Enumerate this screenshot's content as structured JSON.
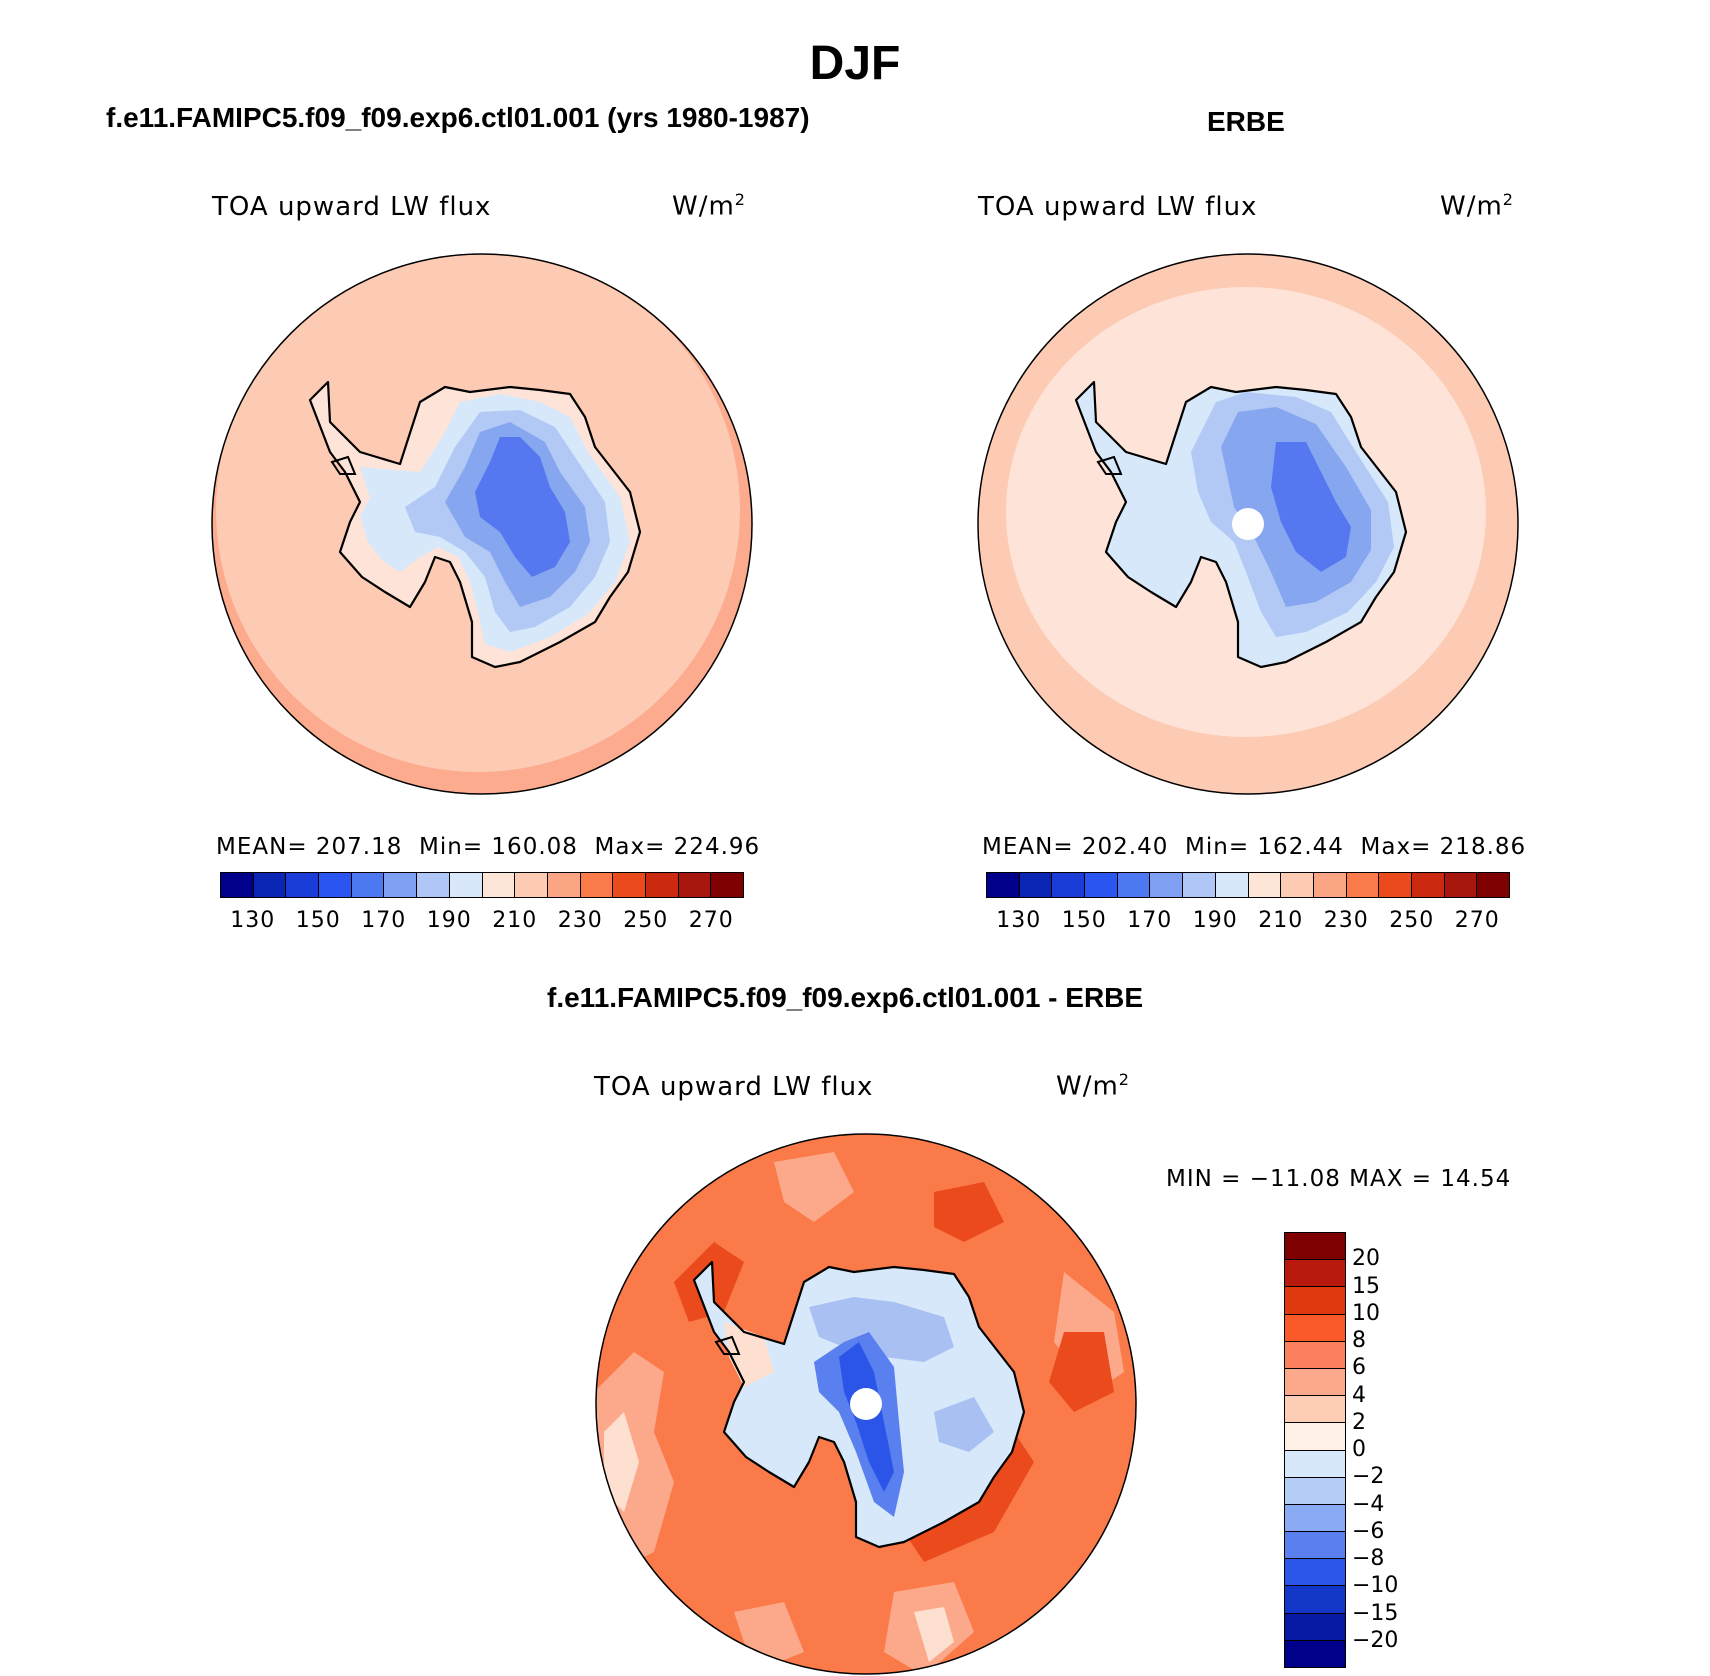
{
  "page": {
    "season": "DJF"
  },
  "panels": {
    "model": {
      "title": "f.e11.FAMIPC5.f09_f09.exp6.ctl01.001 (yrs 1980-1987)",
      "variable": "TOA upward LW flux",
      "units_base": "W/m",
      "units_exp": "2",
      "mean_label": "MEAN=",
      "mean": "207.18",
      "min_label": "Min=",
      "min": "160.08",
      "max_label": "Max=",
      "max": "224.96",
      "colors": {
        "ocean": "#fdcab3",
        "outer_ring": "#fcab8f",
        "coast_fill": "#fee4d8",
        "light_blue": "#d6e8fa",
        "mid_blue": "#b3c9f5",
        "blue": "#87a6f0",
        "deep_blue": "#5578f0"
      }
    },
    "obs": {
      "title": "ERBE",
      "variable": "TOA upward LW flux",
      "units_base": "W/m",
      "units_exp": "2",
      "mean_label": "MEAN=",
      "mean": "202.40",
      "min_label": "Min=",
      "min": "162.44",
      "max_label": "Max=",
      "max": "218.86",
      "colors": {
        "ocean": "#fee4d8",
        "outer_ring": "#fdcab3",
        "light_blue": "#d6e8fa",
        "mid_blue": "#b3c9f5",
        "blue": "#87a6f0",
        "deep_blue": "#5578f0"
      }
    },
    "diff": {
      "title": "f.e11.FAMIPC5.f09_f09.exp6.ctl01.001 - ERBE",
      "variable": "TOA upward LW flux",
      "units_base": "W/m",
      "units_exp": "2",
      "minmax_text": "MIN = −11.08 MAX =  14.54",
      "colors": {
        "ocean": "#fa7a4a",
        "hot": "#eb4a1c",
        "warm": "#fca98b",
        "pale": "#fde0d0",
        "ice_light": "#d7e8fa",
        "ice_mid": "#a9c0f3",
        "ice_blue": "#5a80f0",
        "ice_deep": "#2a55e8"
      }
    }
  },
  "colorbar_abs": {
    "ticks": [
      "130",
      "150",
      "170",
      "190",
      "210",
      "230",
      "250",
      "270"
    ],
    "colors": [
      "#00008b",
      "#0a24b4",
      "#1a3cd6",
      "#2a55f0",
      "#4c78f2",
      "#7f9ff3",
      "#b0c6f6",
      "#d8e8fa",
      "#fde6d8",
      "#fdcab3",
      "#fca584",
      "#fa7a4a",
      "#ea4a1c",
      "#cc2a10",
      "#a8170e",
      "#7f0000"
    ]
  },
  "colorbar_diff": {
    "labels": [
      "20",
      "15",
      "10",
      "8",
      "6",
      "4",
      "2",
      "0",
      "−2",
      "−4",
      "−6",
      "−8",
      "−10",
      "−15",
      "−20"
    ],
    "colors": [
      "#7f0000",
      "#b81a0e",
      "#e0380f",
      "#fa5a2a",
      "#fa8060",
      "#fca98b",
      "#fdcdb5",
      "#fef0e6",
      "#d7e8fa",
      "#b5ccf6",
      "#8aaaf3",
      "#5a80f0",
      "#2a55e8",
      "#1236c8",
      "#081aa4",
      "#00008b"
    ]
  }
}
